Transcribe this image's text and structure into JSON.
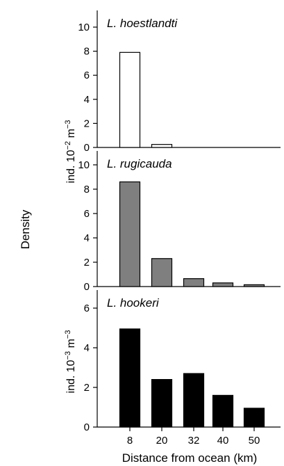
{
  "chart_data": {
    "type": "bar",
    "categories": [
      "8",
      "20",
      "32",
      "40",
      "50"
    ],
    "xlabel": "Distance from ocean (km)",
    "shared_ylabel": "Density",
    "unit_labels": {
      "upper": {
        "base": "ind. 10",
        "exp": "−2",
        "suffix": " m",
        "suffix_exp": "−3"
      },
      "lower": {
        "base": "ind. 10",
        "exp": "−3",
        "suffix": " m",
        "suffix_exp": "−3"
      }
    },
    "panels": [
      {
        "title": "L. hoestlandti",
        "values": [
          7.9,
          0.25,
          0,
          0,
          0
        ],
        "ylim": [
          0,
          11
        ],
        "yticks": [
          "0",
          "2",
          "4",
          "6",
          "8",
          "10"
        ],
        "bar_color": "#ffffff"
      },
      {
        "title": "L. rugicauda",
        "values": [
          8.6,
          2.3,
          0.65,
          0.3,
          0.15
        ],
        "ylim": [
          0,
          11
        ],
        "yticks": [
          "0",
          "2",
          "4",
          "6",
          "8",
          "10"
        ],
        "bar_color": "#7f7f7f"
      },
      {
        "title": "L. hookeri",
        "values": [
          4.95,
          2.4,
          2.7,
          1.6,
          0.95
        ],
        "ylim": [
          0,
          7
        ],
        "yticks": [
          "0",
          "2",
          "4",
          "6"
        ],
        "bar_color": "#000000"
      }
    ]
  }
}
